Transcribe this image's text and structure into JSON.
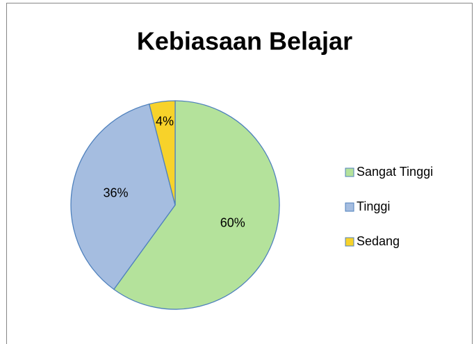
{
  "chart_data": {
    "type": "pie",
    "title": "Kebiasaan Belajar",
    "categories": [
      "Sangat Tinggi",
      "Tinggi",
      "Sedang"
    ],
    "values": [
      60,
      36,
      4
    ],
    "value_labels": [
      "60%",
      "36%",
      "4%"
    ],
    "colors": [
      "#b4e29b",
      "#a5bde0",
      "#f7d22a"
    ],
    "legend": "right"
  }
}
